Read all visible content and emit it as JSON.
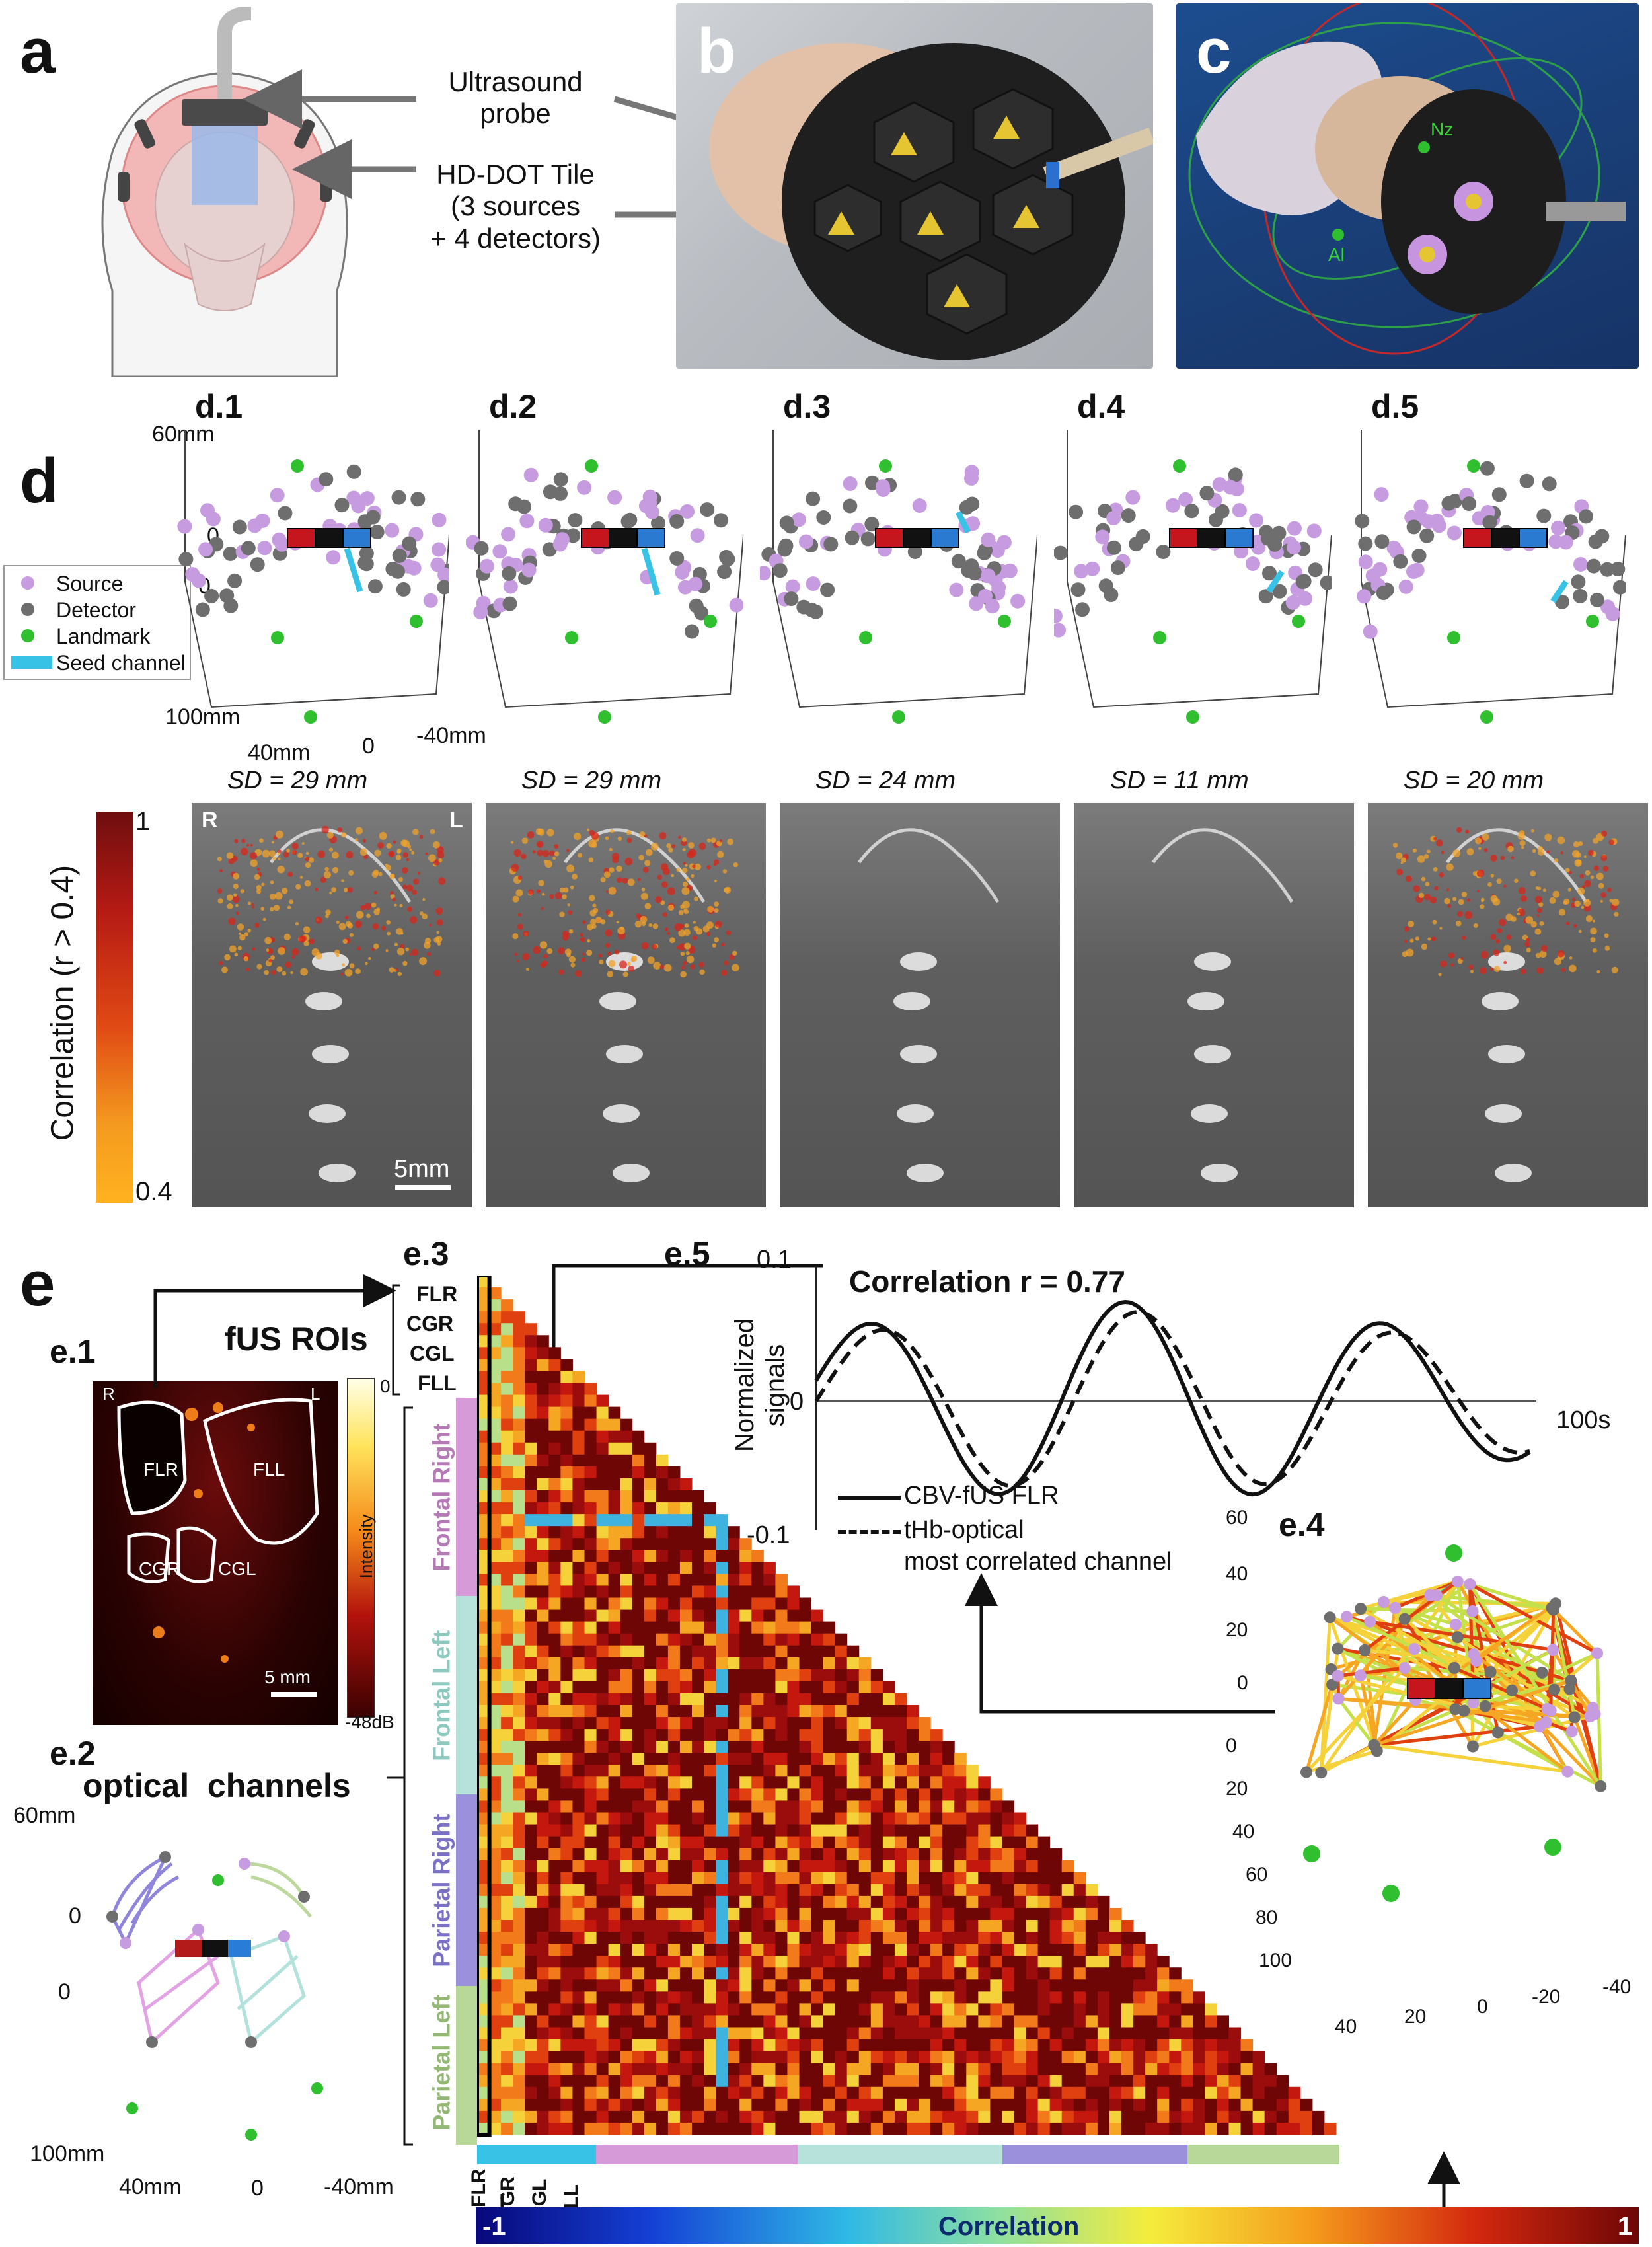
{
  "panels": {
    "a": "a",
    "b": "b",
    "c": "c",
    "d": "d",
    "e": "e"
  },
  "panel_a": {
    "ultrasound_probe": "Ultrasound\nprobe",
    "hd_dot_tile": "HD-DOT Tile\n(3 sources\n+ 4 detectors)"
  },
  "panel_c": {
    "nz": "Nz",
    "al": "Al"
  },
  "panel_d": {
    "subpanels": [
      {
        "label": "d.1",
        "sd": "SD = 29 mm"
      },
      {
        "label": "d.2",
        "sd": "SD = 29 mm"
      },
      {
        "label": "d.3",
        "sd": "SD = 24 mm"
      },
      {
        "label": "d.4",
        "sd": "SD = 11 mm"
      },
      {
        "label": "d.5",
        "sd": "SD = 20 mm"
      }
    ],
    "axis": {
      "y_top": "60mm",
      "y_mid": "0",
      "z_top": "0",
      "z_bottom": "100mm",
      "x_left": "40mm",
      "x_mid": "0",
      "x_right": "-40mm"
    },
    "legend": {
      "source": "Source",
      "detector": "Detector",
      "landmark": "Landmark",
      "seed": "Seed channel"
    },
    "colorbar": {
      "title": "Correlation (r > 0.4)",
      "max": "1",
      "min": "0.4"
    },
    "orientation": {
      "right": "R",
      "left": "L"
    },
    "scale": "5mm"
  },
  "panel_e": {
    "e1": {
      "label": "e.1",
      "rois": [
        "FLR",
        "FLL",
        "CGR",
        "CGL"
      ],
      "scale": "5 mm",
      "r": "R",
      "l": "L",
      "cb_top": "0",
      "cb_bottom": "-48dB",
      "cb_title": "Intensity"
    },
    "e2": {
      "label": "e.2",
      "title": "optical  channels",
      "y_top": "60mm",
      "y_mid": "0",
      "z_top": "0",
      "z_bottom": "100mm",
      "x_left": "40mm",
      "x_mid": "0",
      "x_right": "-40mm"
    },
    "e3": {
      "label": "e.3",
      "fus_title": "fUS ROIs",
      "rois": [
        "FLR",
        "CGR",
        "CGL",
        "FLL"
      ],
      "groups": [
        "Frontal Right",
        "Frontal Left",
        "Parietal Right",
        "Parietal Left"
      ],
      "bottom_rois": [
        "FLR",
        "CGR",
        "CGL",
        "FLL"
      ],
      "colorbar_label": "Correlation",
      "cb_min": "-1",
      "cb_max": "1"
    },
    "e4": {
      "label": "e.4",
      "y_ticks": [
        "60",
        "40",
        "20",
        "0"
      ],
      "z_ticks": [
        "0",
        "20",
        "40",
        "60",
        "80",
        "100"
      ],
      "x_ticks": [
        "40",
        "20",
        "0",
        "-20",
        "-40"
      ]
    },
    "e5": {
      "label": "e.5",
      "title": "Correlation r = 0.77",
      "ylabel": "Normalized\nsignals",
      "y_top": "0.1",
      "y_mid": "0",
      "y_bottom": "-0.1",
      "x_end": "100s",
      "legend_solid": "CBV-fUS FLR",
      "legend_dashed": "tHb-optical\nmost correlated channel"
    }
  },
  "colors": {
    "source": "#c79be0",
    "detector": "#6e6e6e",
    "landmark": "#2fbf2f",
    "seed": "#38c3e6",
    "frontal_right": "#d79ad8",
    "frontal_left": "#b7e2dc",
    "parietal_right": "#9a90dc",
    "parietal_left": "#b8d89a"
  }
}
